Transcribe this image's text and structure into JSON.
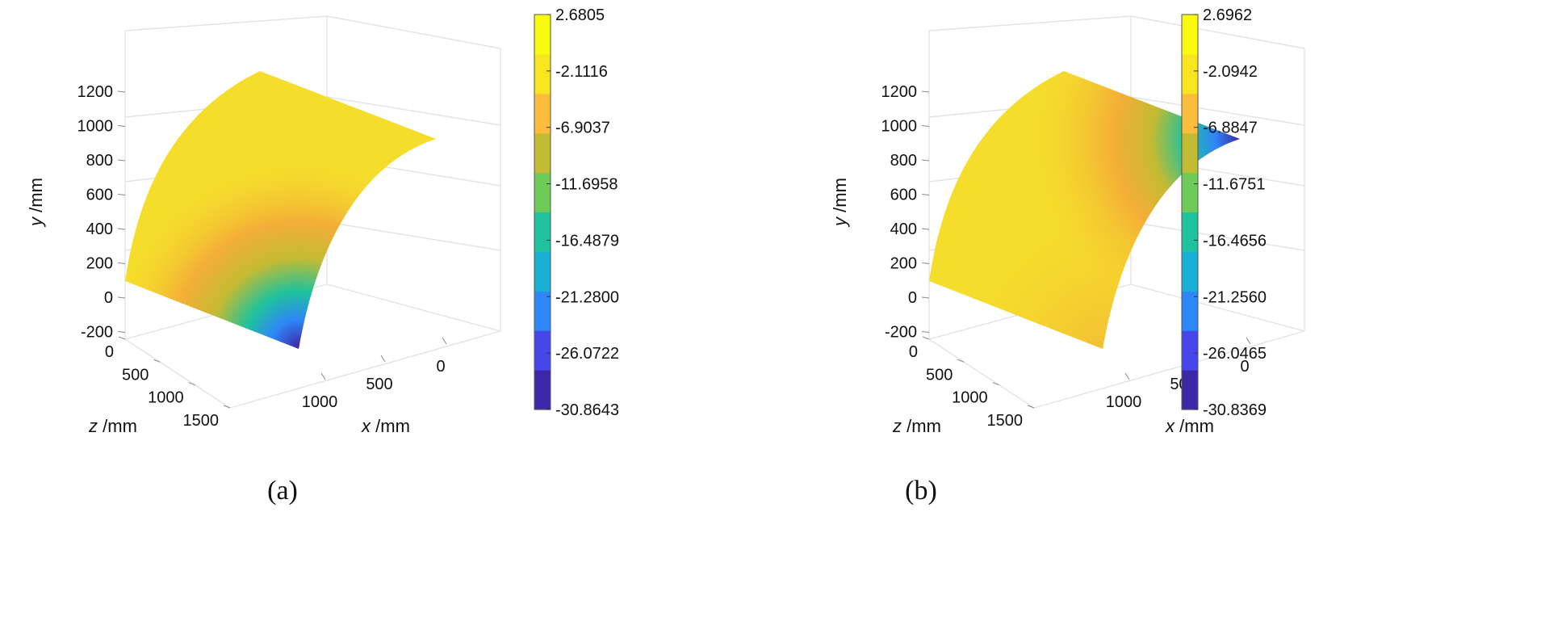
{
  "colors": {
    "colormap": [
      "#3e26a8",
      "#4746eb",
      "#2e87f7",
      "#18b0d4",
      "#1ec29d",
      "#6ecb5a",
      "#c3bb33",
      "#fdbd3c",
      "#f8e41f",
      "#f9fb0e"
    ],
    "grid": "#e3e3e3",
    "axis": "#8a8a8a"
  },
  "chart_data": [
    {
      "type": "surface",
      "caption": "(a)",
      "xlabel": "x /mm",
      "ylabel": "y /mm",
      "zlabel": "z /mm",
      "x_ticks": [
        "0",
        "500",
        "1000"
      ],
      "y_ticks": [
        "-200",
        "0",
        "200",
        "400",
        "600",
        "800",
        "1000",
        "1200"
      ],
      "z_ticks": [
        "0",
        "500",
        "1000",
        "1500"
      ],
      "colorbar_ticks": [
        "2.6805",
        "-2.1116",
        "-6.9037",
        "-11.6958",
        "-16.4879",
        "-21.2800",
        "-26.0722",
        "-30.8643"
      ],
      "clim": [
        -30.8643,
        2.6805
      ],
      "surface": "cylindrical shell, nearly uniform ~0 with localized minimum at the bottom front corner",
      "hotspot": {
        "x": 1250,
        "y": -150,
        "z": 0,
        "value": -30.8643
      }
    },
    {
      "type": "surface",
      "caption": "(b)",
      "xlabel": "x /mm",
      "ylabel": "y /mm",
      "zlabel": "z /mm",
      "x_ticks": [
        "0",
        "500",
        "1000"
      ],
      "y_ticks": [
        "-200",
        "0",
        "200",
        "400",
        "600",
        "800",
        "1000",
        "1200"
      ],
      "z_ticks": [
        "0",
        "500",
        "1000",
        "1500"
      ],
      "colorbar_ticks": [
        "2.6962",
        "-2.0942",
        "-6.8847",
        "-11.6751",
        "-16.4656",
        "-21.2560",
        "-26.0465",
        "-30.8369"
      ],
      "clim": [
        -30.8369,
        2.6962
      ],
      "surface": "cylindrical shell, nearly uniform ~0 with localized minimum at the top back edge",
      "hotspot": {
        "x": 1250,
        "y": 900,
        "z": 1500,
        "value": -30.8369
      }
    }
  ]
}
